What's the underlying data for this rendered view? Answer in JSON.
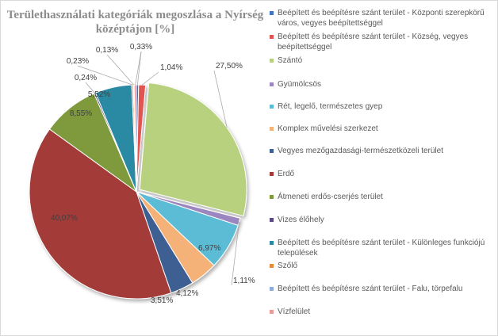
{
  "chart_data": {
    "type": "pie",
    "title": "Területhasználati kategóriák megoszlása a Nyírség középtájon [%]",
    "legend_position": "right",
    "slices": [
      {
        "label": "Beépített és beépítésre szánt terület - Központi szerepkörű város, vegyes beépítettséggel",
        "value": 0.33,
        "value_label": "0,33%",
        "color": "#4472c4"
      },
      {
        "label": "Beépített és beépítésre szánt terület - Község, vegyes beépítettséggel",
        "value": 1.04,
        "value_label": "1,04%",
        "color": "#e05550"
      },
      {
        "label": "Szántó",
        "value": 27.5,
        "value_label": "27,50%",
        "color": "#b7d17e"
      },
      {
        "label": "Gyümölcsös",
        "value": 1.11,
        "value_label": "1,11%",
        "color": "#9b86bf"
      },
      {
        "label": "Rét, legelő, természetes gyep",
        "value": 6.97,
        "value_label": "6,97%",
        "color": "#5cbcd6"
      },
      {
        "label": "Komplex művelési szerkezet",
        "value": 4.12,
        "value_label": "4,12%",
        "color": "#f5b278"
      },
      {
        "label": "Vegyes mezőgazdasági-természetközeli terület",
        "value": 3.51,
        "value_label": "3,51%",
        "color": "#3e5f91"
      },
      {
        "label": "Erdő",
        "value": 40.07,
        "value_label": "40,07%",
        "color": "#a33a38"
      },
      {
        "label": "Átmeneti erdős-cserjés terület",
        "value": 8.55,
        "value_label": "8,55%",
        "color": "#7e9a3d"
      },
      {
        "label": "Vizes élőhely",
        "value": 0.24,
        "value_label": "0,24%",
        "color": "#5a4880"
      },
      {
        "label": "Beépített és beépítésre szánt terület - Különleges funkciójú települések",
        "value": 5.52,
        "value_label": "5,52%",
        "color": "#2a8aa3"
      },
      {
        "label": "Szőlő",
        "value": 0.23,
        "value_label": "0,23%",
        "color": "#e88a3a"
      },
      {
        "label": "Beépített és beépítésre szánt terület - Falu, törpefalu",
        "value": 0.13,
        "value_label": "0,13%",
        "color": "#8faadc"
      },
      {
        "label": "Vízfelület",
        "value": 0.33,
        "value_label": "0,33%",
        "color": "#ec9a98"
      }
    ]
  }
}
